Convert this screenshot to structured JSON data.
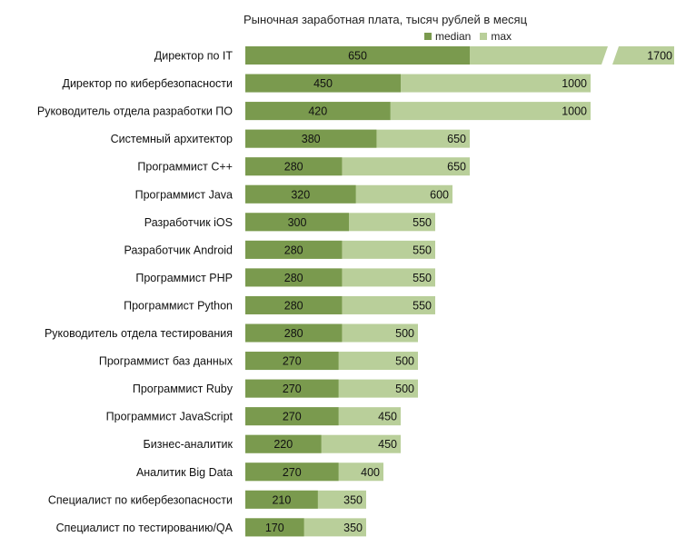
{
  "chart_data": {
    "type": "bar",
    "orientation": "horizontal",
    "title": "Рыночная заработная плата, тысяч рублей в месяц",
    "categories": [
      "Директор по IT",
      "Директор по кибербезопасности",
      "Руководитель отдела разработки ПО",
      "Системный архитектор",
      "Программист C++",
      "Программист Java",
      "Разработчик iOS",
      "Разработчик Android",
      "Программист PHP",
      "Программист Python",
      "Руководитель отдела тестирования",
      "Программист баз данных",
      "Программист Ruby",
      "Программист JavaScript",
      "Бизнес-аналитик",
      "Аналитик Big Data",
      "Специалист по кибербезопасности",
      "Специалист по тестированию/QA"
    ],
    "series": [
      {
        "name": "median",
        "color": "#7a9a4e",
        "values": [
          650,
          450,
          420,
          380,
          280,
          320,
          300,
          280,
          280,
          280,
          280,
          270,
          270,
          270,
          220,
          270,
          210,
          170
        ]
      },
      {
        "name": "max",
        "color": "#b9cf9a",
        "values": [
          1700,
          1000,
          1000,
          650,
          650,
          600,
          550,
          550,
          550,
          550,
          500,
          500,
          500,
          450,
          450,
          400,
          350,
          350
        ]
      }
    ],
    "axis_break": {
      "series": "max",
      "category": "Директор по IT"
    },
    "grid": false,
    "legend_position": "top-right"
  }
}
